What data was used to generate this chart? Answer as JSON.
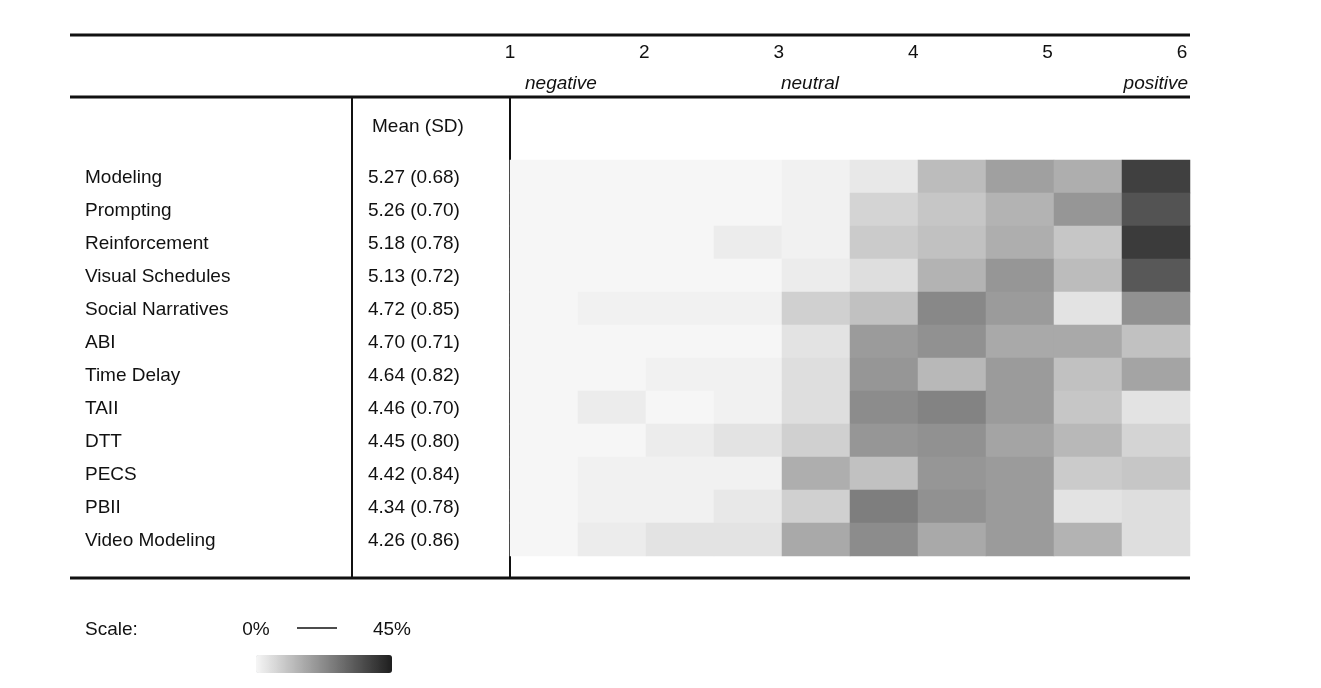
{
  "chart_data": {
    "type": "heatmap",
    "categories": [
      null,
      null,
      null,
      null,
      null,
      null,
      null,
      null,
      null,
      null
    ],
    "y_categories": [
      "Modeling",
      "Prompting",
      "Reinforcement",
      "Visual Schedules",
      "Social Narratives",
      "ABI",
      "Time Delay",
      "TAII",
      "DTT",
      "PECS",
      "PBII",
      "Video Modeling"
    ],
    "y2_categories": [
      "5.27 (0.68)",
      "5.26 (0.70)",
      "5.18 (0.78)",
      "5.13 (0.72)",
      "4.72 (0.85)",
      "4.70 (0.71)",
      "4.64 (0.82)",
      "4.46 (0.70)",
      "4.45 (0.80)",
      "4.42 (0.84)",
      "4.34 (0.78)",
      "4.26 (0.86)"
    ],
    "y2label": "Mean (SD)",
    "clabel": "Scale:",
    "clim": [
      0,
      45
    ],
    "cticks": [
      {
        "value": 0,
        "label": "0%"
      },
      {
        "value": 45,
        "label": "45%"
      }
    ],
    "cells": [
      [
        0,
        0,
        0,
        0,
        1,
        3,
        12,
        18,
        15,
        38
      ],
      [
        0,
        0,
        0,
        0,
        1,
        7,
        10,
        14,
        20,
        34
      ],
      [
        0,
        0,
        0,
        2,
        1,
        9,
        11,
        15,
        10,
        39
      ],
      [
        0,
        0,
        0,
        0,
        2,
        5,
        14,
        20,
        12,
        33
      ],
      [
        0,
        1,
        1,
        1,
        8,
        11,
        23,
        19,
        4,
        21
      ],
      [
        0,
        0,
        0,
        0,
        4,
        19,
        21,
        16,
        16,
        11
      ],
      [
        0,
        0,
        1,
        1,
        5,
        20,
        13,
        19,
        11,
        17
      ],
      [
        0,
        2,
        0,
        1,
        5,
        22,
        24,
        19,
        10,
        4
      ],
      [
        0,
        0,
        2,
        4,
        8,
        20,
        21,
        17,
        13,
        7
      ],
      [
        0,
        1,
        1,
        1,
        15,
        11,
        20,
        19,
        9,
        10
      ],
      [
        0,
        1,
        1,
        3,
        8,
        25,
        21,
        19,
        4,
        5
      ],
      [
        0,
        2,
        4,
        4,
        16,
        22,
        16,
        19,
        14,
        5
      ]
    ],
    "annotations": [
      "1",
      "2",
      "3",
      "4",
      "5",
      "6",
      "negative",
      "neutral",
      "positive"
    ]
  }
}
